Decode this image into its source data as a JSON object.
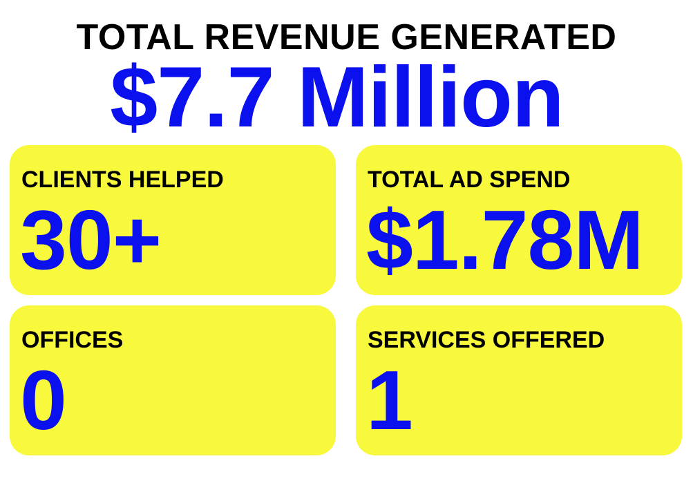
{
  "header": {
    "title": "TOTAL REVENUE GENERATED",
    "value": "$7.7 Million"
  },
  "cards": [
    {
      "label": "CLIENTS HELPED",
      "value": "30+"
    },
    {
      "label": "TOTAL AD SPEND",
      "value": "$1.78M"
    },
    {
      "label": "OFFICES",
      "value": "0"
    },
    {
      "label": "SERVICES OFFERED",
      "value": "1"
    }
  ]
}
